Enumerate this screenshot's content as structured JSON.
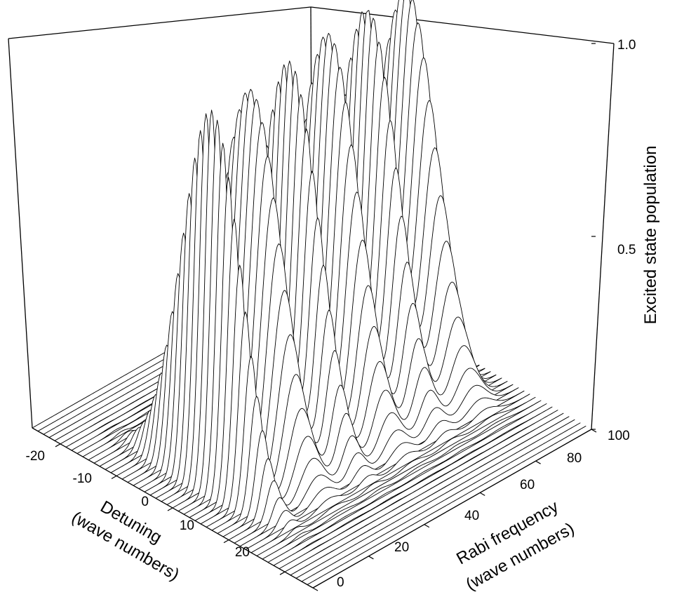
{
  "chart_data": {
    "type": "surface3d",
    "title": "",
    "axes": {
      "x": {
        "label_lines": [
          "Detuning",
          "(wave numbers)"
        ],
        "ticks": [
          -20,
          -10,
          0,
          10,
          20
        ],
        "range": [
          -25,
          25
        ]
      },
      "y": {
        "label_lines": [
          "Rabi frequency",
          "(wave numbers)"
        ],
        "ticks": [
          0,
          20,
          40,
          60,
          80,
          100
        ],
        "range": [
          0,
          100
        ]
      },
      "z": {
        "label": "Excited state population",
        "ticks": [
          "0.5",
          "1.0"
        ],
        "range": [
          0,
          1
        ]
      }
    },
    "peaks": [
      {
        "rabi": 14,
        "detuning": 0,
        "height": 0.97,
        "width": 2.3
      },
      {
        "rabi": 28,
        "detuning": 0,
        "height": 0.97,
        "width": 4.2
      },
      {
        "rabi": 42,
        "detuning": 0,
        "height": 0.98,
        "width": 3.0
      },
      {
        "rabi": 56,
        "detuning": 0,
        "height": 1.0,
        "width": 4.0
      },
      {
        "rabi": 70,
        "detuning": 0,
        "height": 1.0,
        "width": 3.4
      },
      {
        "rabi": 84,
        "detuning": 0,
        "height": 1.0,
        "width": 4.4
      }
    ],
    "surface_note_values": {
      "baseline": 0.0,
      "max": 1.0
    },
    "grid": true
  }
}
